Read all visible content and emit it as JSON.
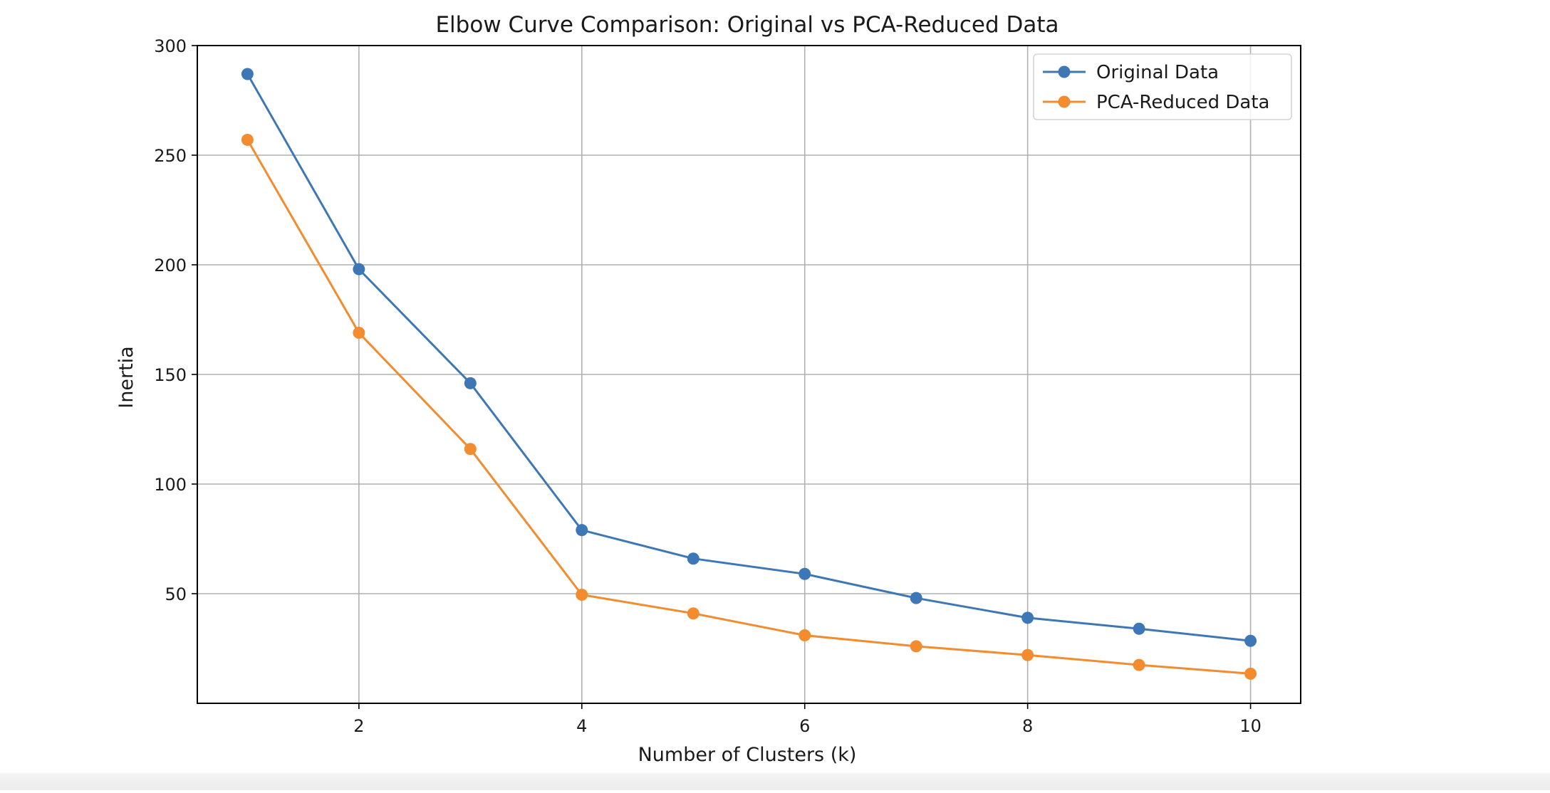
{
  "chart_data": {
    "type": "line",
    "title": "Elbow Curve Comparison: Original vs PCA-Reduced Data",
    "xlabel": "Number of Clusters (k)",
    "ylabel": "Inertia",
    "xlim": [
      0.55,
      10.45
    ],
    "ylim": [
      0,
      300
    ],
    "xticks": [
      2,
      4,
      6,
      8,
      10
    ],
    "yticks": [
      50,
      100,
      150,
      200,
      250,
      300
    ],
    "grid": true,
    "legend_position": "top-right",
    "x": [
      1,
      2,
      3,
      4,
      5,
      6,
      7,
      8,
      9,
      10
    ],
    "series": [
      {
        "name": "Original Data",
        "color": "#3e77b6",
        "marker": "circle",
        "values": [
          287,
          198,
          146,
          79,
          66,
          59,
          48,
          39,
          34,
          28.5
        ]
      },
      {
        "name": "PCA-Reduced Data",
        "color": "#f28c2e",
        "marker": "circle",
        "values": [
          257,
          169,
          116,
          49.5,
          41,
          31,
          26,
          22,
          17.5,
          13.5
        ]
      }
    ]
  }
}
